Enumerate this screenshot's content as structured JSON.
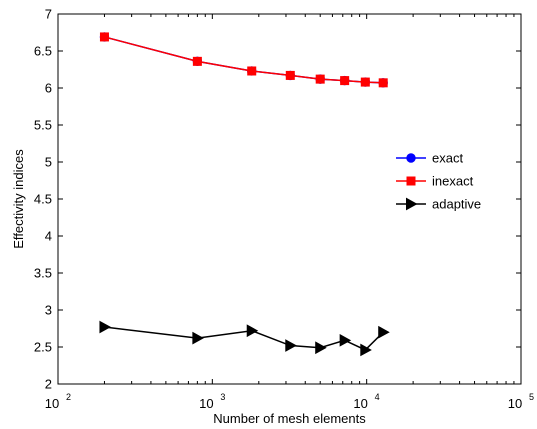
{
  "chart_data": {
    "type": "line",
    "xlabel": "Number of mesh elements",
    "ylabel": "Effectivity indices",
    "xscale": "log",
    "xlim": [
      100,
      100000
    ],
    "ylim": [
      2,
      7
    ],
    "x_ticks": [
      {
        "base": "10",
        "exp": "2"
      },
      {
        "base": "10",
        "exp": "3"
      },
      {
        "base": "10",
        "exp": "4"
      },
      {
        "base": "10",
        "exp": "5"
      }
    ],
    "y_ticks": [
      "2",
      "2.5",
      "3",
      "3.5",
      "4",
      "4.5",
      "5",
      "5.5",
      "6",
      "6.5",
      "7"
    ],
    "legend_position": "center-right",
    "series": [
      {
        "name": "exact",
        "color": "#0000ff",
        "marker": "circle",
        "x": [
          200,
          800,
          1800,
          3200,
          5000,
          7200,
          9800,
          12800
        ],
        "y": [
          6.69,
          6.36,
          6.23,
          6.17,
          6.12,
          6.1,
          6.08,
          6.07
        ]
      },
      {
        "name": "inexact",
        "color": "#ff0000",
        "marker": "square",
        "x": [
          200,
          800,
          1800,
          3200,
          5000,
          7200,
          9800,
          12800
        ],
        "y": [
          6.69,
          6.36,
          6.23,
          6.17,
          6.12,
          6.1,
          6.08,
          6.07
        ]
      },
      {
        "name": "adaptive",
        "color": "#000000",
        "marker": "triangle-right",
        "x": [
          200,
          800,
          1800,
          3200,
          5000,
          7200,
          9800,
          12800
        ],
        "y": [
          2.77,
          2.62,
          2.72,
          2.52,
          2.49,
          2.59,
          2.46,
          2.7
        ]
      }
    ]
  }
}
